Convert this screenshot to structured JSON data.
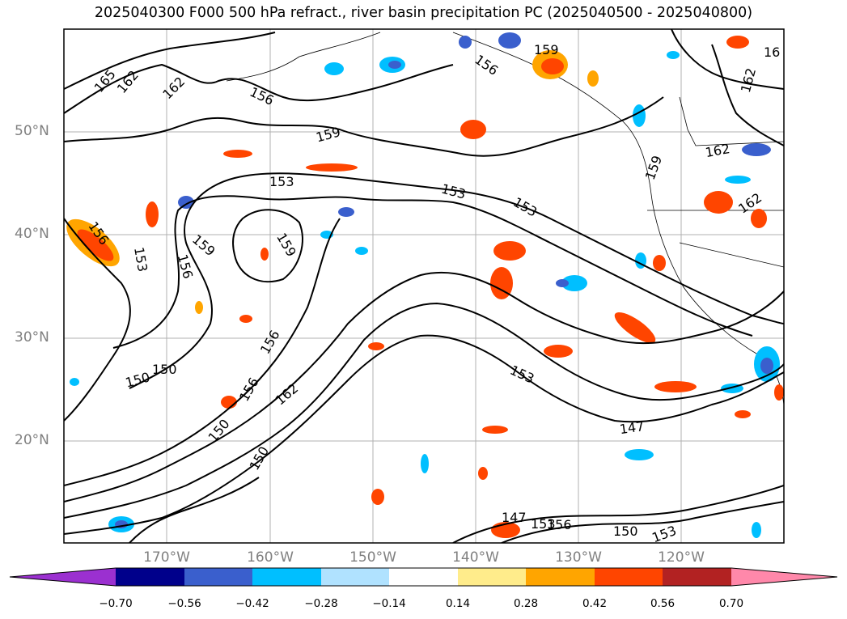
{
  "title": "2025040300 F000 500 hPa refract., river basin precipitation PC (2025040500 - 2025040800)",
  "map": {
    "lat_labels": [
      "50°N",
      "40°N",
      "30°N",
      "20°N"
    ],
    "lon_labels": [
      "170°W",
      "160°W",
      "150°W",
      "140°W",
      "130°W",
      "120°W"
    ],
    "contour_labels": [
      "165",
      "162",
      "162",
      "156",
      "159",
      "153",
      "153",
      "153",
      "156",
      "153",
      "156",
      "159",
      "159",
      "156",
      "150",
      "150",
      "156",
      "162",
      "150",
      "150",
      "153",
      "147",
      "147",
      "153",
      "156",
      "150",
      "153",
      "159",
      "162",
      "162",
      "162",
      "159",
      "156",
      "16"
    ],
    "grid": true
  },
  "colorbar": {
    "ticks": [
      "−0.70",
      "−0.56",
      "−0.42",
      "−0.28",
      "−0.14",
      "0.14",
      "0.28",
      "0.42",
      "0.56",
      "0.70"
    ],
    "colors": {
      "under": "#9b30d0",
      "b1": "#00008b",
      "b2": "#3a5fcd",
      "b3": "#00bfff",
      "b4": "#b0e2ff",
      "b5": "#ffffff",
      "b6": "#ffec8b",
      "b7": "#ffa500",
      "b8": "#ff4500",
      "b9": "#b22222",
      "over": "#ff88aa"
    }
  }
}
